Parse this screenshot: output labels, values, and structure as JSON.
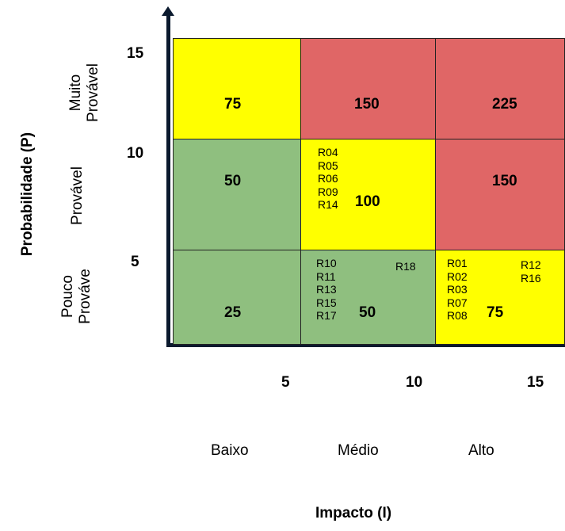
{
  "colors": {
    "low": "#8fbf7f",
    "medium": "#ffff00",
    "high": "#e06666",
    "axis": "#0b1a2e"
  },
  "axes": {
    "y_title": "Probabilidade (P)",
    "x_title": "Impacto (I)",
    "y_ticks": [
      "15",
      "10",
      "5"
    ],
    "x_ticks": [
      "5",
      "10",
      "15"
    ],
    "y_categories": [
      {
        "line1": "Muito",
        "line2": "Provável"
      },
      {
        "line1": "Provável",
        "line2": ""
      },
      {
        "line1": "Pouco",
        "line2": "Prováve"
      }
    ],
    "x_categories": [
      "Baixo",
      "Médio",
      "Alto"
    ]
  },
  "matrix": {
    "row_top": {
      "c1": "75",
      "c2": "150",
      "c3": "225"
    },
    "row_mid": {
      "c1": "50",
      "c2": "100",
      "c2_risks": "R04\nR05\nR06\nR09\nR14",
      "c3": "150"
    },
    "row_bot": {
      "c1": "25",
      "c2": "50",
      "c2_risks_a": "R10\nR11\nR13\nR15\nR17",
      "c2_risks_b": "R18",
      "c3": "75",
      "c3_risks_a": "R01\nR02\nR03\nR07\nR08",
      "c3_risks_b": "R12\nR16"
    }
  }
}
